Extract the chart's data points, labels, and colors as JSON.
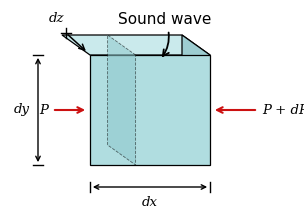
{
  "title": "Sound wave",
  "label_P": "P",
  "label_PdP": "P + dP",
  "label_dx": "dx",
  "label_dy": "dy",
  "label_dz": "dz",
  "bg_color": "#ffffff",
  "cube_face_color": "#b0dde0",
  "cube_top_color": "#caeaec",
  "cube_right_color": "#9dcdd1",
  "cube_inner_color": "#8ec8cc",
  "arrow_color": "#cc1111",
  "line_color": "#000000",
  "font_size": 9.5,
  "title_font_size": 11
}
